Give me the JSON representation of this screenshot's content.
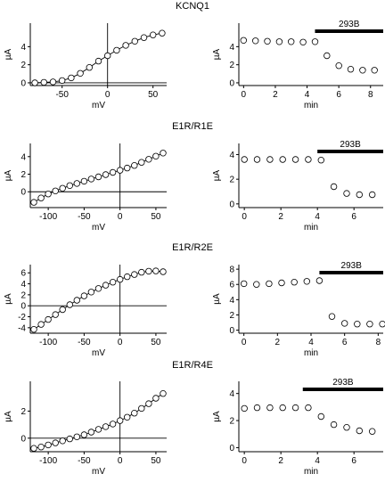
{
  "chart_data": [
    {
      "type": "line",
      "panel": "iv",
      "title": "KCNQ1",
      "xlabel": "mV",
      "ylabel": "µA",
      "xlim": [
        -85,
        65
      ],
      "ylim": [
        -0.3,
        6.6
      ],
      "xticks": [
        -50,
        0,
        50
      ],
      "yticks": [
        0,
        2,
        4
      ],
      "x": [
        -80,
        -70,
        -60,
        -50,
        -40,
        -30,
        -20,
        -10,
        0,
        10,
        20,
        30,
        40,
        50,
        60
      ],
      "values": [
        0,
        0.05,
        0.1,
        0.25,
        0.55,
        1.05,
        1.7,
        2.4,
        3.0,
        3.6,
        4.15,
        4.6,
        5.0,
        5.3,
        5.5
      ]
    },
    {
      "type": "scatter",
      "panel": "time",
      "title": "",
      "xlabel": "min",
      "ylabel": "µA",
      "xlim": [
        -0.3,
        8.8
      ],
      "ylim": [
        -0.3,
        6.6
      ],
      "xticks": [
        0,
        2,
        4,
        6,
        8
      ],
      "yticks": [
        0,
        2,
        4
      ],
      "x": [
        0,
        0.75,
        1.5,
        2.25,
        3,
        3.75,
        4.5,
        5.25,
        6,
        6.75,
        7.5,
        8.25
      ],
      "values": [
        4.7,
        4.65,
        4.6,
        4.55,
        4.55,
        4.5,
        4.55,
        3.0,
        1.9,
        1.5,
        1.4,
        1.4
      ],
      "drug": {
        "label": "293B",
        "start": 4.5,
        "end": 8.8
      }
    },
    {
      "type": "line",
      "panel": "iv",
      "title": "E1R/R1E",
      "xlabel": "mV",
      "ylabel": "µA",
      "xlim": [
        -125,
        65
      ],
      "ylim": [
        -1.8,
        5.5
      ],
      "xticks": [
        -100,
        -50,
        0,
        50
      ],
      "yticks": [
        0,
        2,
        4
      ],
      "x": [
        -120,
        -110,
        -100,
        -90,
        -80,
        -70,
        -60,
        -50,
        -40,
        -30,
        -20,
        -10,
        0,
        10,
        20,
        30,
        40,
        50,
        60
      ],
      "values": [
        -1.2,
        -0.7,
        -0.25,
        0.1,
        0.4,
        0.7,
        0.95,
        1.2,
        1.45,
        1.7,
        1.95,
        2.2,
        2.45,
        2.7,
        3.0,
        3.35,
        3.7,
        4.05,
        4.4
      ]
    },
    {
      "type": "scatter",
      "panel": "time",
      "title": "",
      "xlabel": "min",
      "ylabel": "µA",
      "xlim": [
        -0.3,
        7.6
      ],
      "ylim": [
        -0.3,
        4.9
      ],
      "xticks": [
        0,
        2,
        4,
        6
      ],
      "yticks": [
        0,
        2,
        4
      ],
      "x": [
        0,
        0.7,
        1.4,
        2.1,
        2.8,
        3.5,
        4.2,
        4.9,
        5.6,
        6.3,
        7.0
      ],
      "values": [
        3.6,
        3.6,
        3.6,
        3.6,
        3.6,
        3.6,
        3.55,
        1.4,
        0.85,
        0.75,
        0.75
      ],
      "drug": {
        "label": "293B",
        "start": 4.0,
        "end": 7.6
      }
    },
    {
      "type": "line",
      "panel": "iv",
      "title": "E1R/R2E",
      "xlabel": "mV",
      "ylabel": "µA",
      "xlim": [
        -125,
        65
      ],
      "ylim": [
        -5,
        7.5
      ],
      "xticks": [
        -100,
        -50,
        0,
        50
      ],
      "yticks": [
        -4,
        -2,
        0,
        2,
        4,
        6
      ],
      "x": [
        -120,
        -110,
        -100,
        -90,
        -80,
        -70,
        -60,
        -50,
        -40,
        -30,
        -20,
        -10,
        0,
        10,
        20,
        30,
        40,
        50,
        60
      ],
      "values": [
        -4.3,
        -3.4,
        -2.5,
        -1.6,
        -0.7,
        0.2,
        1.0,
        1.8,
        2.5,
        3.15,
        3.75,
        4.3,
        4.8,
        5.3,
        5.7,
        6.1,
        6.3,
        6.35,
        6.2
      ]
    },
    {
      "type": "scatter",
      "panel": "time",
      "title": "",
      "xlabel": "min",
      "ylabel": "µA",
      "xlim": [
        -0.3,
        8.3
      ],
      "ylim": [
        -0.4,
        8.6
      ],
      "xticks": [
        0,
        2,
        4,
        6,
        8
      ],
      "yticks": [
        0,
        2,
        4,
        6,
        8
      ],
      "x": [
        0,
        0.75,
        1.5,
        2.25,
        3,
        3.75,
        4.5,
        5.25,
        6,
        6.75,
        7.5,
        8.25
      ],
      "values": [
        6.1,
        6.0,
        6.1,
        6.2,
        6.3,
        6.4,
        6.5,
        1.8,
        0.9,
        0.8,
        0.8,
        0.8
      ],
      "drug": {
        "label": "293B",
        "start": 4.5,
        "end": 8.3
      }
    },
    {
      "type": "line",
      "panel": "iv",
      "title": "E1R/R4E",
      "xlabel": "mV",
      "ylabel": "µA",
      "xlim": [
        -125,
        65
      ],
      "ylim": [
        -1.0,
        4.2
      ],
      "xticks": [
        -100,
        -50,
        0,
        50
      ],
      "yticks": [
        0,
        2
      ],
      "x": [
        -120,
        -110,
        -100,
        -90,
        -80,
        -70,
        -60,
        -50,
        -40,
        -30,
        -20,
        -10,
        0,
        10,
        20,
        30,
        40,
        50,
        60
      ],
      "values": [
        -0.75,
        -0.65,
        -0.5,
        -0.35,
        -0.2,
        -0.05,
        0.1,
        0.25,
        0.45,
        0.65,
        0.85,
        1.05,
        1.3,
        1.55,
        1.85,
        2.2,
        2.55,
        2.95,
        3.3
      ]
    },
    {
      "type": "scatter",
      "panel": "time",
      "title": "",
      "xlabel": "min",
      "ylabel": "µA",
      "xlim": [
        -0.3,
        7.6
      ],
      "ylim": [
        -0.3,
        4.9
      ],
      "xticks": [
        0,
        2,
        4,
        6
      ],
      "yticks": [
        0,
        2,
        4
      ],
      "x": [
        0,
        0.7,
        1.4,
        2.1,
        2.8,
        3.5,
        4.2,
        4.9,
        5.6,
        6.3,
        7.0
      ],
      "values": [
        2.9,
        2.95,
        2.95,
        2.95,
        2.95,
        2.95,
        2.3,
        1.7,
        1.5,
        1.25,
        1.2
      ],
      "drug": {
        "label": "293B",
        "start": 3.2,
        "end": 7.6
      }
    }
  ]
}
